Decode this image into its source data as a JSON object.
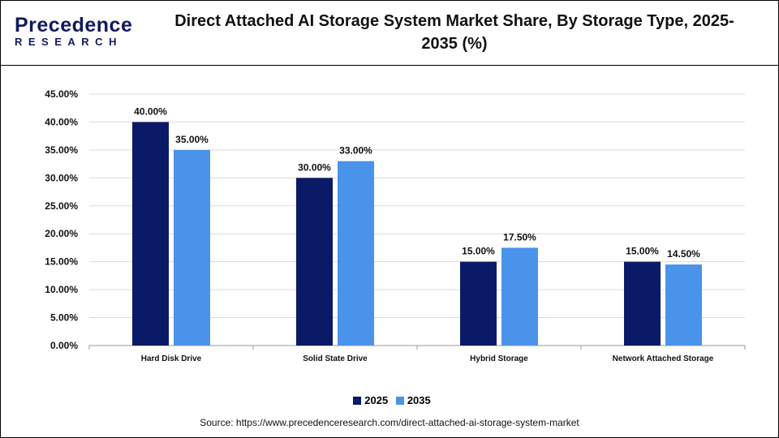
{
  "header": {
    "logo_text_top": "Precedence",
    "logo_text_bottom": "RESEARCH",
    "title": "Direct Attached AI Storage System Market Share, By Storage Type, 2025-2035 (%)"
  },
  "chart_data": {
    "type": "bar",
    "title": "Direct Attached AI Storage System Market Share, By Storage Type, 2025-2035 (%)",
    "categories": [
      "Hard Disk Drive",
      "Solid State Drive",
      "Hybrid Storage",
      "Network Attached Storage"
    ],
    "series": [
      {
        "name": "2025",
        "values": [
          40.0,
          30.0,
          15.0,
          15.0
        ],
        "color": "#0b1a66",
        "labels": [
          "40.00%",
          "30.00%",
          "15.00%",
          "15.00%"
        ]
      },
      {
        "name": "2035",
        "values": [
          35.0,
          33.0,
          17.5,
          14.5
        ],
        "color": "#4a93ea",
        "labels": [
          "35.00%",
          "33.00%",
          "17.50%",
          "14.50%"
        ]
      }
    ],
    "yticks": [
      "0.00%",
      "5.00%",
      "10.00%",
      "15.00%",
      "20.00%",
      "25.00%",
      "30.00%",
      "35.00%",
      "40.00%",
      "45.00%"
    ],
    "ylim": [
      0,
      45
    ],
    "xlabel": "",
    "ylabel": "",
    "grid": true,
    "legend_position": "bottom"
  },
  "source": "Source: https://www.precedenceresearch.com/direct-attached-ai-storage-system-market"
}
